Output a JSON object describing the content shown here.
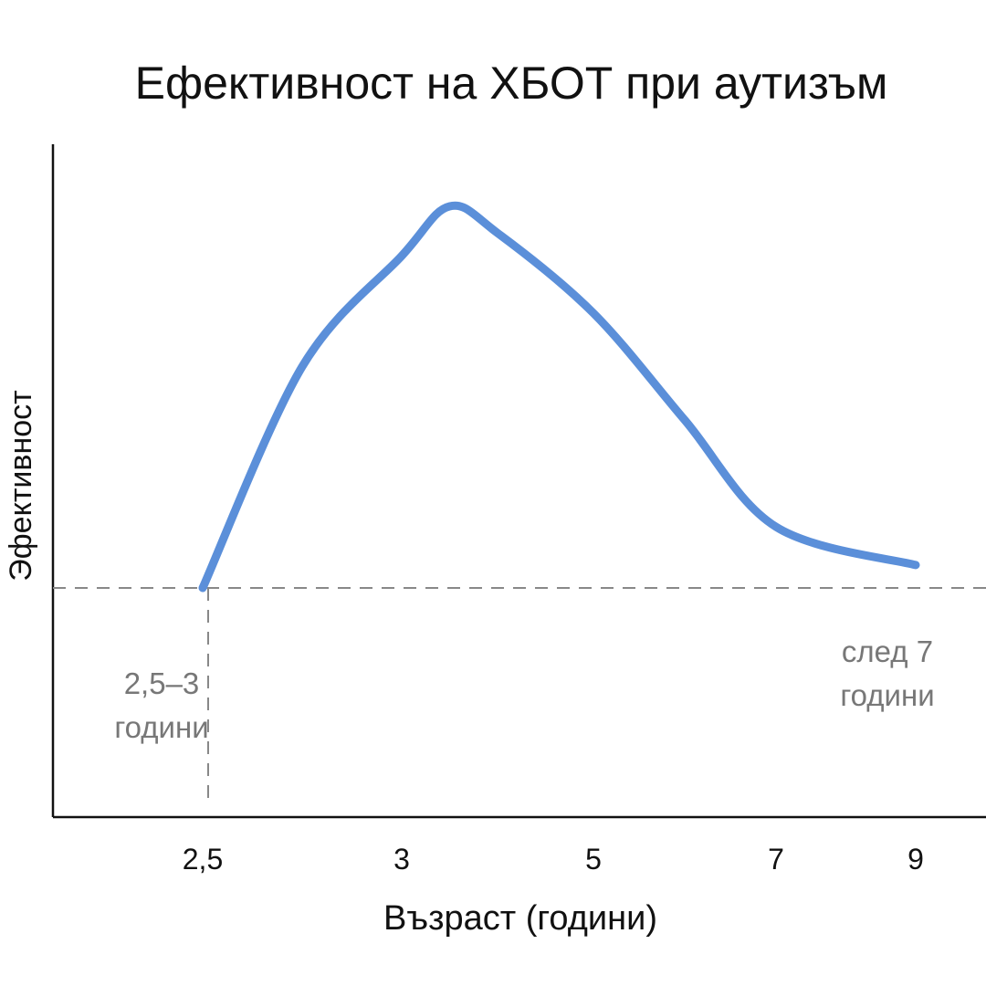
{
  "chart_data": {
    "type": "line",
    "title": "Ефективност на ХБОТ при аутизъм",
    "xlabel": "Възраст (години)",
    "ylabel": "Эфективност",
    "x_ticks": [
      "2,5",
      "3",
      "5",
      "7",
      "9"
    ],
    "series": [
      {
        "color": "#5b8fd9",
        "points": [
          {
            "x": 2.5,
            "y": 0.0
          },
          {
            "x": 2.75,
            "y": 0.58
          },
          {
            "x": 3.0,
            "y": 0.87
          },
          {
            "x": 3.5,
            "y": 1.0
          },
          {
            "x": 4.0,
            "y": 0.93
          },
          {
            "x": 5.0,
            "y": 0.72
          },
          {
            "x": 6.0,
            "y": 0.44
          },
          {
            "x": 7.0,
            "y": 0.16
          },
          {
            "x": 9.0,
            "y": 0.06
          }
        ]
      }
    ],
    "baseline_y": 0.0,
    "reference_x": 2.5,
    "ylim": [
      0,
      1
    ],
    "grid": false,
    "legend": "none",
    "annotations": [
      {
        "lines": [
          "2,5–3",
          "години"
        ],
        "near_x": 2.5,
        "position": "below-baseline"
      },
      {
        "lines": [
          "след 7",
          "години"
        ],
        "near_x": 9.0,
        "position": "below-baseline"
      }
    ],
    "axis_color": "#111111",
    "reference_line_color": "#888888"
  }
}
